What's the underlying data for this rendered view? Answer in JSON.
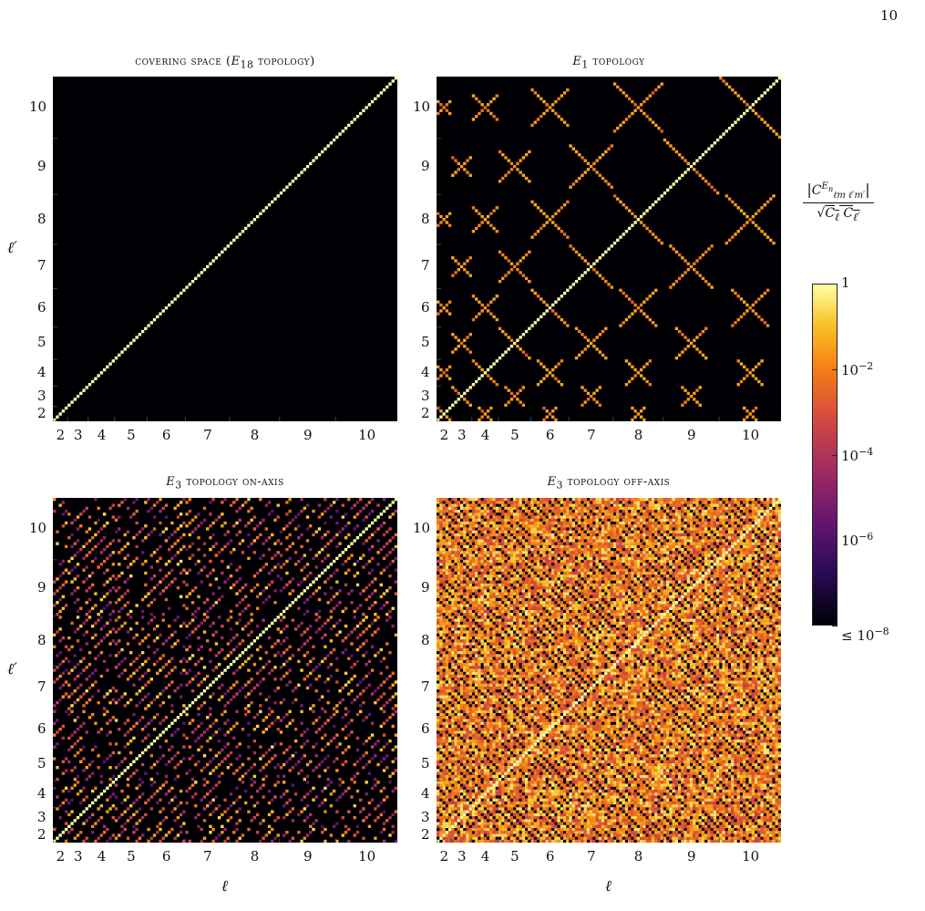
{
  "page_number": "10",
  "chart_data": [
    {
      "type": "heatmap",
      "title": "covering space (E18 topology)",
      "xlabel": "",
      "ylabel": "ℓ′",
      "x_ticks": [
        "2",
        "3",
        "4",
        "5",
        "6",
        "7",
        "8",
        "9",
        "10"
      ],
      "y_ticks": [
        "2",
        "3",
        "4",
        "5",
        "6",
        "7",
        "8",
        "9",
        "10"
      ],
      "pattern": "diagonal-only",
      "diagonal_value": 1,
      "off_diagonal_max": 1e-08
    },
    {
      "type": "heatmap",
      "title": "E1 topology",
      "xlabel": "",
      "ylabel": "",
      "x_ticks": [
        "2",
        "3",
        "4",
        "5",
        "6",
        "7",
        "8",
        "9",
        "10"
      ],
      "y_ticks": [
        "2",
        "3",
        "4",
        "5",
        "6",
        "7",
        "8",
        "9",
        "10"
      ],
      "pattern": "diagonal-plus-checkerboard-blocks",
      "diagonal_value": 1,
      "off_diagonal_typical": 0.01
    },
    {
      "type": "heatmap",
      "title": "E3 topology on-axis",
      "xlabel": "ℓ",
      "ylabel": "ℓ′",
      "x_ticks": [
        "2",
        "3",
        "4",
        "5",
        "6",
        "7",
        "8",
        "9",
        "10"
      ],
      "y_ticks": [
        "2",
        "3",
        "4",
        "5",
        "6",
        "7",
        "8",
        "9",
        "10"
      ],
      "pattern": "diagonal-plus-sparse-stripes",
      "diagonal_value": 1,
      "off_diagonal_typical": 0.001
    },
    {
      "type": "heatmap",
      "title": "E3 topology off-axis",
      "xlabel": "ℓ",
      "ylabel": "",
      "x_ticks": [
        "2",
        "3",
        "4",
        "5",
        "6",
        "7",
        "8",
        "9",
        "10"
      ],
      "y_ticks": [
        "2",
        "3",
        "4",
        "5",
        "6",
        "7",
        "8",
        "9",
        "10"
      ],
      "pattern": "dense-with-dark-antidiagonal-stripes",
      "diagonal_value": 1,
      "off_diagonal_typical": 0.01
    }
  ],
  "colorbar": {
    "label": "|C^{E_n}_{ℓm ℓ′m′}| / √(C_ℓ C_ℓ′)",
    "ticks": [
      "1",
      "10−2",
      "10−4",
      "10−6",
      "≤ 10−8"
    ],
    "scale": "log",
    "range": [
      1e-08,
      1
    ],
    "colormap": "inferno"
  },
  "colors": {
    "background": "#000004",
    "low": "#000004",
    "mid_purple": "#56106e",
    "mid_red": "#bb3754",
    "orange": "#f98e09",
    "high": "#fcffa4"
  }
}
